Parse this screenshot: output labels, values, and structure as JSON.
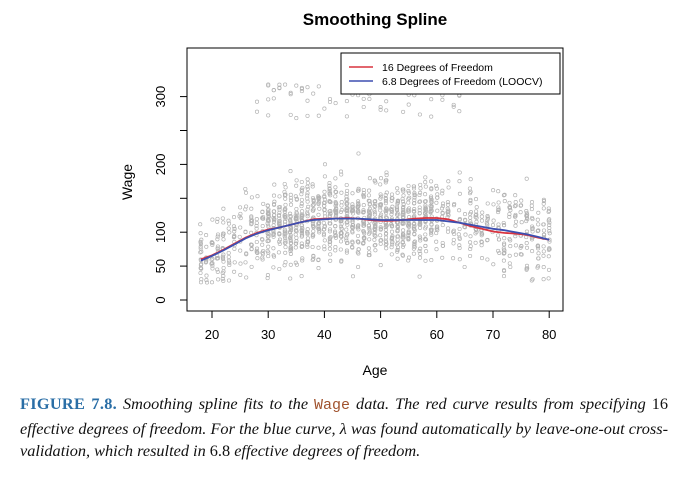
{
  "chart_data": {
    "type": "scatter",
    "title": "Smoothing Spline",
    "xlabel": "Age",
    "ylabel": "Wage",
    "xlim": [
      18,
      80
    ],
    "ylim": [
      0,
      330
    ],
    "xticks": [
      "20",
      "30",
      "40",
      "50",
      "60",
      "70",
      "80"
    ],
    "yticks": [
      "0",
      "50",
      "100",
      "200",
      "300"
    ],
    "grid": false,
    "legend_position": "top-right",
    "scatter_color": "#b3b3b3",
    "series": [
      {
        "name": "16 Degrees of Freedom",
        "color": "#d9333f",
        "x": [
          18,
          20,
          22,
          24,
          26,
          28,
          30,
          32,
          34,
          36,
          38,
          40,
          42,
          44,
          46,
          48,
          50,
          52,
          54,
          56,
          58,
          60,
          62,
          64,
          66,
          68,
          70,
          72,
          74,
          76,
          78,
          80
        ],
        "y": [
          60,
          66,
          74,
          83,
          92,
          99,
          104,
          107,
          111,
          115,
          119,
          120,
          120,
          121,
          120,
          118,
          117,
          117,
          118,
          120,
          121,
          121,
          119,
          114,
          109,
          105,
          101,
          99,
          98,
          96,
          92,
          89
        ]
      },
      {
        "name": "6.8 Degrees of Freedom (LOOCV)",
        "color": "#3d4fb0",
        "x": [
          18,
          20,
          22,
          24,
          26,
          28,
          30,
          32,
          34,
          36,
          38,
          40,
          42,
          44,
          46,
          48,
          50,
          52,
          54,
          56,
          58,
          60,
          62,
          64,
          66,
          68,
          70,
          72,
          74,
          76,
          78,
          80
        ],
        "y": [
          58,
          65,
          73,
          82,
          91,
          98,
          103,
          107,
          111,
          115,
          118,
          119,
          120,
          120,
          120,
          119,
          118,
          118,
          118,
          118,
          118,
          118,
          116,
          114,
          111,
          108,
          105,
          103,
          100,
          97,
          93,
          89
        ]
      }
    ]
  },
  "caption": {
    "label": "FIGURE 7.8.",
    "part1": " Smoothing spline fits to the ",
    "code": "Wage",
    "part2": " data. The red curve results from specifying ",
    "num1": "16",
    "part3": " effective degrees of freedom. For the blue curve, λ was found automatically by leave-one-out cross-validation, which resulted in ",
    "num2": "6.8",
    "part4": " effective degrees of freedom."
  }
}
